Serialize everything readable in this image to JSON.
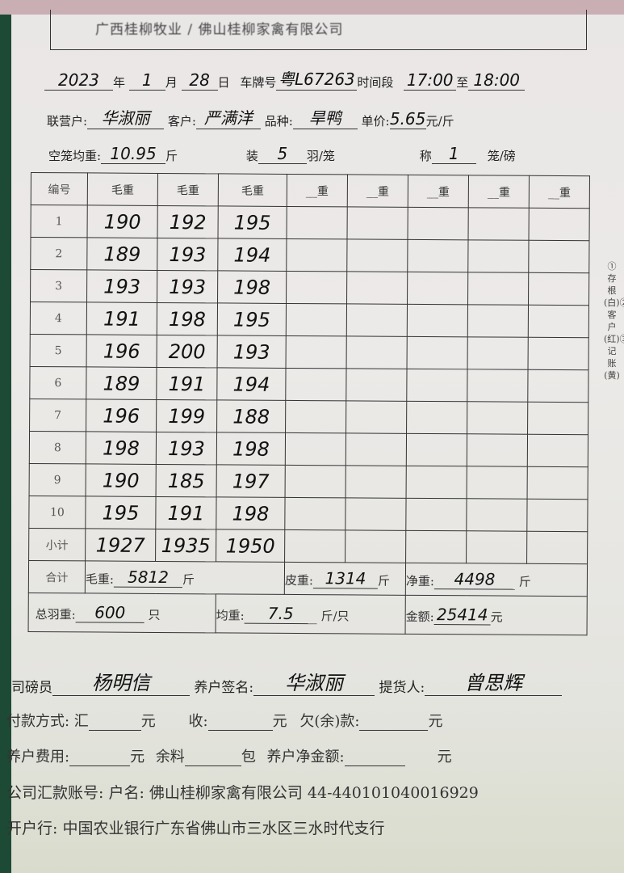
{
  "header": {
    "company_partial": "广西桂柳牧业 / 佛山桂柳家禽有限公司"
  },
  "info": {
    "year": "2023",
    "year_label": "年",
    "month": "1",
    "month_label": "月",
    "day": "28",
    "day_label": "日",
    "plate_label": "车牌号",
    "plate": "粤L67263",
    "time_label": "时间段",
    "time_from": "17:00",
    "to_label": "至",
    "time_to": "18:00",
    "partner_label": "联营户:",
    "partner": "华淑丽",
    "customer_label": "客户:",
    "customer": "严满洋",
    "breed_label": "品种:",
    "breed": "旱鸭",
    "price_label": "单价:",
    "price": "5.65",
    "price_unit": "元/斤",
    "cage_label": "空笼均重:",
    "cage_weight": "10.95",
    "cage_unit": "斤",
    "pack_label": "装",
    "pack": "5",
    "pack_unit": "羽/笼",
    "scale_label": "称",
    "scale": "1",
    "scale_unit": "笼/磅"
  },
  "table": {
    "no_header": "编号",
    "col_headers": [
      "毛重",
      "毛重",
      "毛重",
      "__重",
      "__重",
      "__重",
      "__重",
      "__重"
    ],
    "rows": [
      [
        "1",
        "190",
        "192",
        "195"
      ],
      [
        "2",
        "189",
        "193",
        "194"
      ],
      [
        "3",
        "193",
        "193",
        "198"
      ],
      [
        "4",
        "191",
        "198",
        "195"
      ],
      [
        "5",
        "196",
        "200",
        "193"
      ],
      [
        "6",
        "189",
        "191",
        "194"
      ],
      [
        "7",
        "196",
        "199",
        "188"
      ],
      [
        "8",
        "198",
        "193",
        "198"
      ],
      [
        "9",
        "190",
        "185",
        "197"
      ],
      [
        "10",
        "195",
        "191",
        "198"
      ]
    ],
    "subtotal_label": "小计",
    "subtotal": [
      "1927",
      "1935",
      "1950"
    ],
    "total_label": "合计",
    "gross_label": "毛重:",
    "gross": "5812",
    "tare_label": "皮重:",
    "tare": "1314",
    "net_label": "净重:",
    "net": "4498",
    "jin": "斤",
    "count_label": "总羽重:",
    "count": "600",
    "count_unit": "只",
    "avg_label": "均重:",
    "avg": "7.5",
    "avg_unit": "斤/只",
    "amount_label": "金额:",
    "amount": "25414",
    "amount_unit": "元"
  },
  "side_note": "①存根(白)②客户(红)③记账(黄)",
  "signatures": {
    "weigher_label": "司磅员",
    "weigher": "杨明信",
    "farmer_label": "养户签名:",
    "farmer": "华淑丽",
    "pickup_label": "提货人:",
    "pickup": "曾思辉"
  },
  "payment": {
    "method_label": "付款方式: 汇",
    "yuan": "元",
    "received_label": "收:",
    "owe_label": "欠(余)款:",
    "fee_label": "养户费用:",
    "feed_label": "余料",
    "bag": "包",
    "net_amount_label": "养户净金额:"
  },
  "bank": {
    "account": "公司汇款账号: 户名: 佛山桂柳家禽有限公司 44-440101040016929",
    "branch": "开户行: 中国农业银行广东省佛山市三水区三水时代支行"
  }
}
